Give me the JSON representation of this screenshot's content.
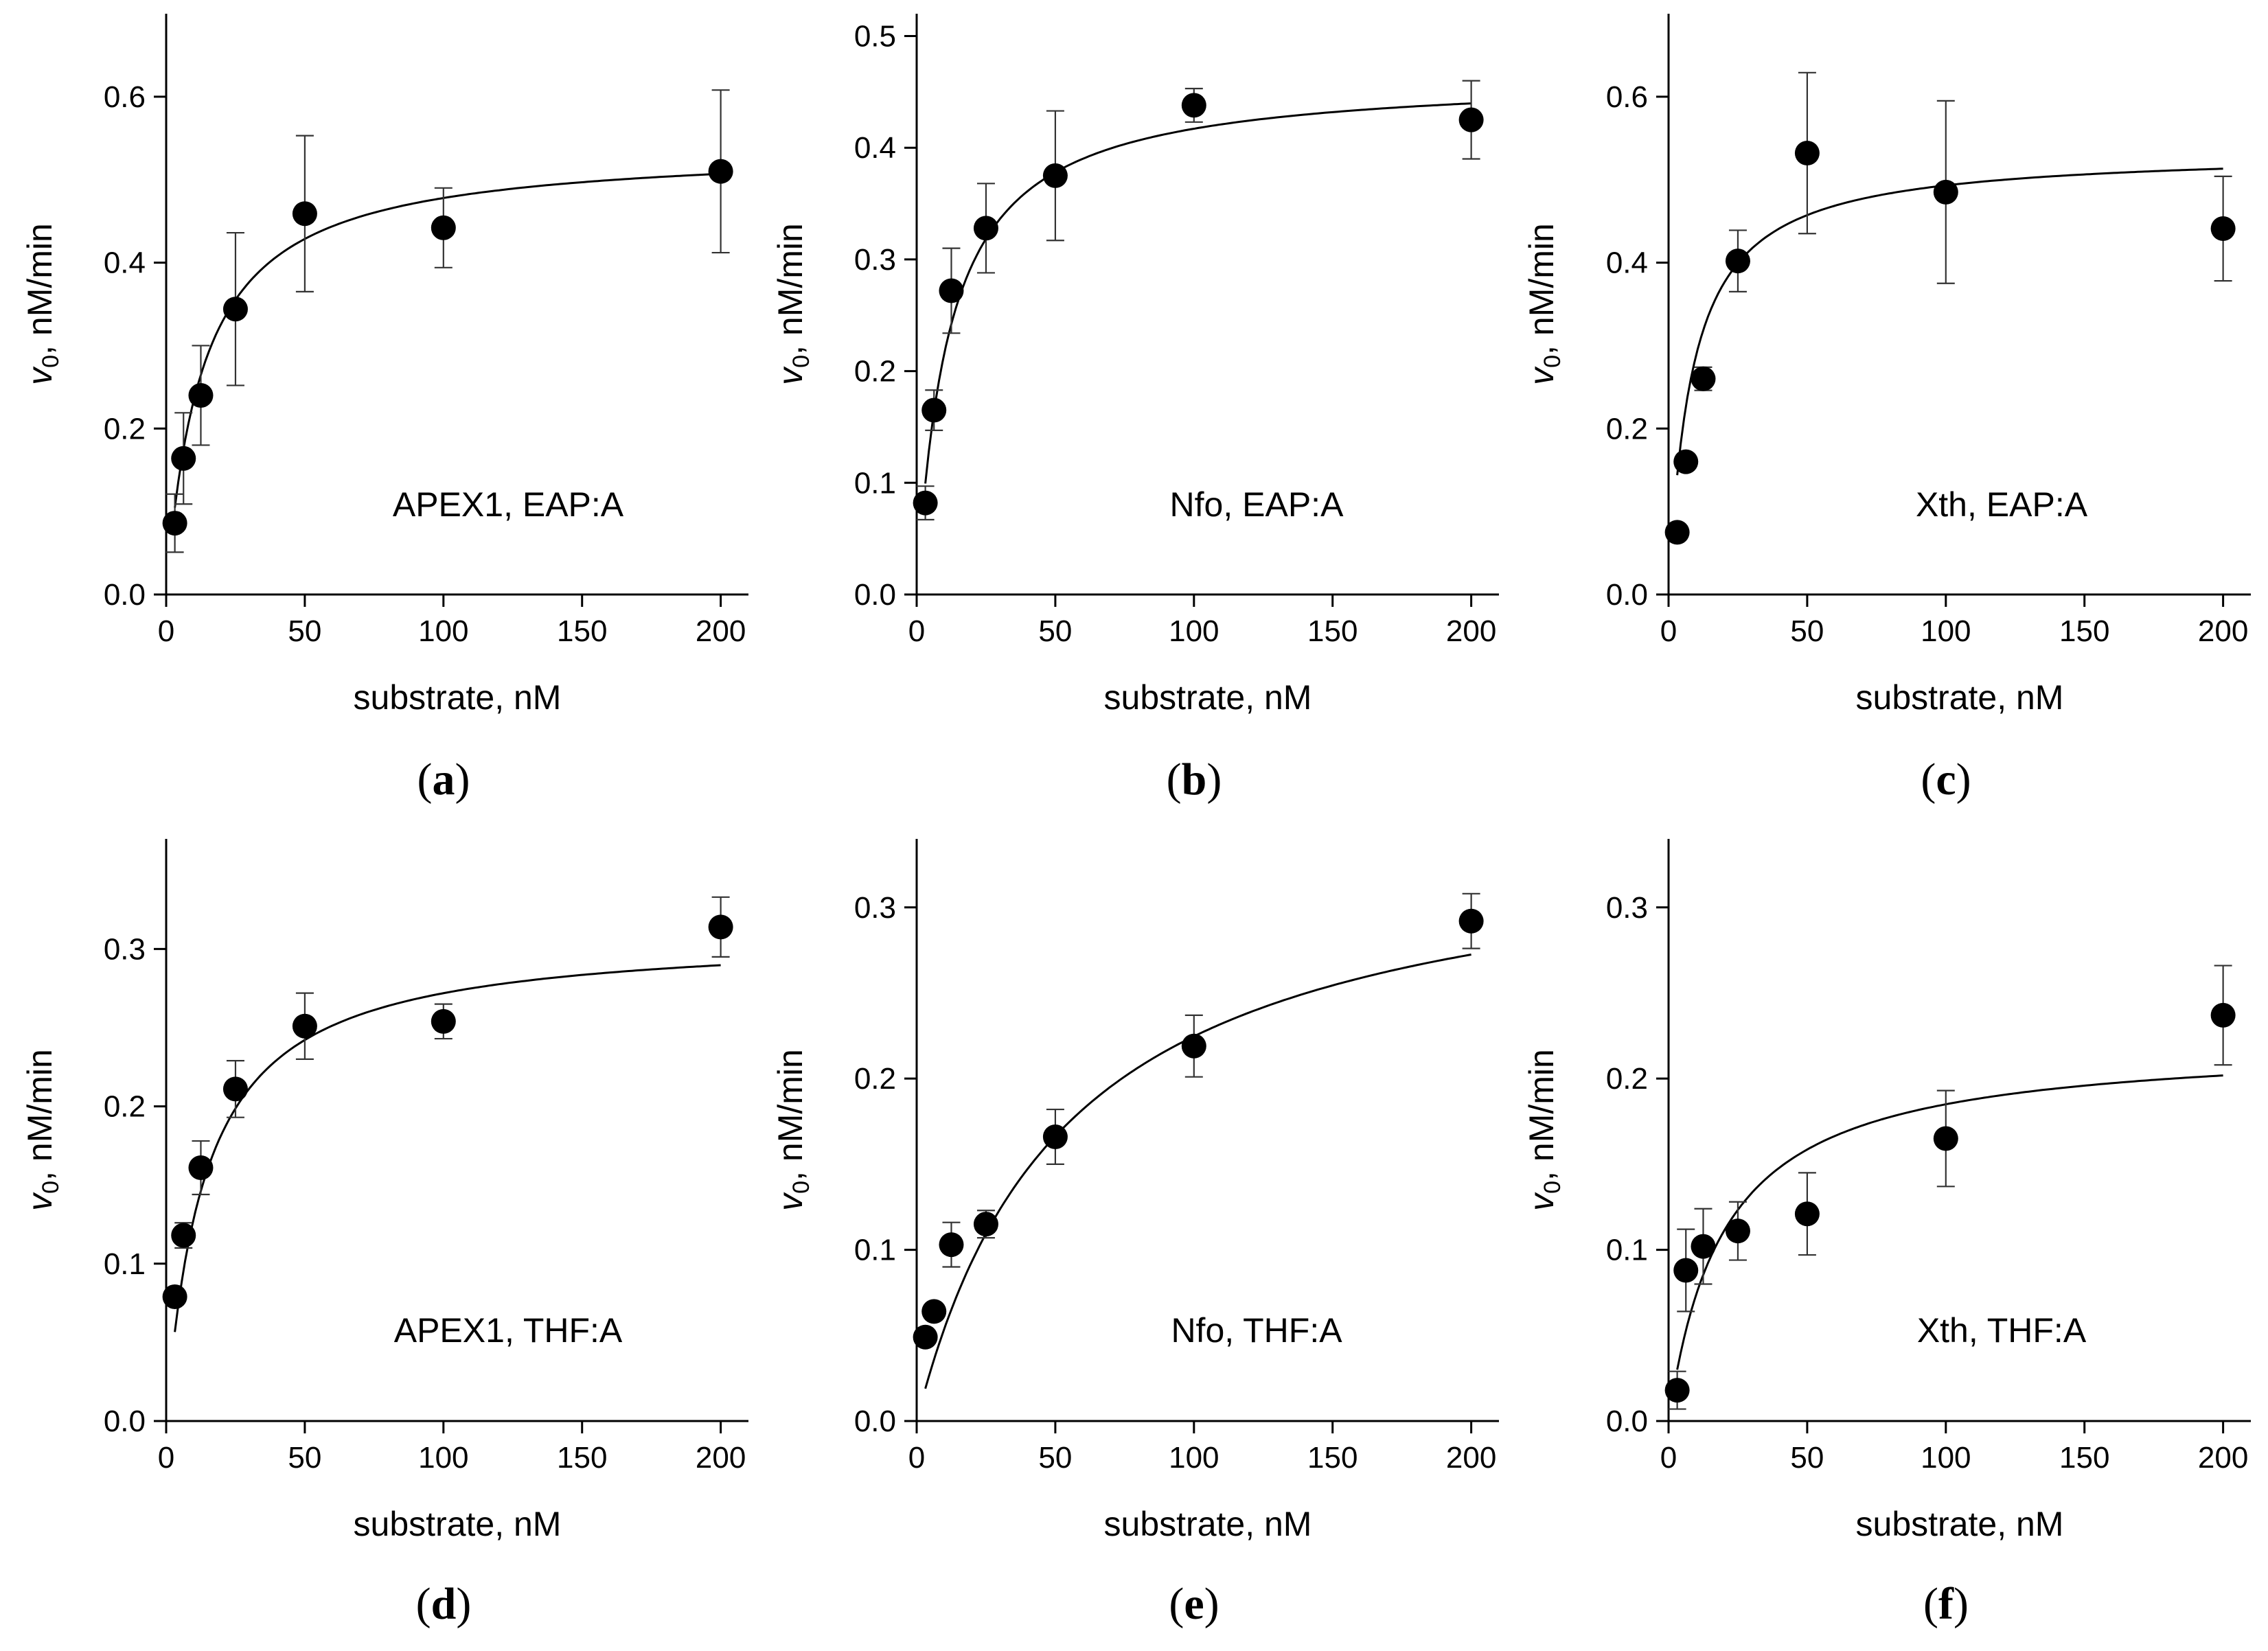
{
  "chart_data": [
    {
      "type": "scatter",
      "panel_label": "(a)",
      "panel_letter": "a",
      "annotation": "APEX1, EAP:A",
      "xlabel": "substrate, nM",
      "ylabel_main": "v",
      "ylabel_sub": "0",
      "ylabel_rest": ", nM/min",
      "xlim": [
        0,
        210
      ],
      "ylim": [
        0,
        0.7
      ],
      "xticks": [
        0,
        50,
        100,
        150,
        200
      ],
      "xtick_labels": [
        "0",
        "50",
        "100",
        "150",
        "200"
      ],
      "yticks": [
        0,
        0.2,
        0.4,
        0.6
      ],
      "ytick_labels": [
        "0.0",
        "0.2",
        "0.4",
        "0.6"
      ],
      "series": [
        {
          "name": "data",
          "x": [
            3.125,
            6.25,
            12.5,
            25,
            50,
            100,
            200
          ],
          "y": [
            0.086,
            0.164,
            0.24,
            0.344,
            0.459,
            0.442,
            0.51
          ],
          "err": [
            0.035,
            0.055,
            0.06,
            0.092,
            0.094,
            0.048,
            0.098
          ]
        }
      ],
      "fit": {
        "model": "michaelis-menten",
        "vmax": 0.54,
        "km": 13.0,
        "x_start": 3.125,
        "x_end": 200
      }
    },
    {
      "type": "scatter",
      "panel_label": "(b)",
      "panel_letter": "b",
      "annotation": "Nfo, EAP:A",
      "xlabel": "substrate, nM",
      "ylabel_main": "v",
      "ylabel_sub": "0",
      "ylabel_rest": ", nM/min",
      "xlim": [
        0,
        210
      ],
      "ylim": [
        0,
        0.52
      ],
      "xticks": [
        0,
        50,
        100,
        150,
        200
      ],
      "xtick_labels": [
        "0",
        "50",
        "100",
        "150",
        "200"
      ],
      "yticks": [
        0,
        0.1,
        0.2,
        0.3,
        0.4,
        0.5
      ],
      "ytick_labels": [
        "0.0",
        "0.1",
        "0.2",
        "0.3",
        "0.4",
        "0.5"
      ],
      "series": [
        {
          "name": "data",
          "x": [
            3.125,
            6.25,
            12.5,
            25,
            50,
            100,
            200
          ],
          "y": [
            0.082,
            0.165,
            0.272,
            0.328,
            0.375,
            0.438,
            0.425
          ],
          "err": [
            0.015,
            0.018,
            0.038,
            0.04,
            0.058,
            0.015,
            0.035
          ]
        }
      ],
      "fit": {
        "model": "michaelis-menten",
        "vmax": 0.465,
        "km": 11.5,
        "x_start": 3.125,
        "x_end": 200
      }
    },
    {
      "type": "scatter",
      "panel_label": "(c)",
      "panel_letter": "c",
      "annotation": "Xth, EAP:A",
      "xlabel": "substrate, nM",
      "ylabel_main": "v",
      "ylabel_sub": "0",
      "ylabel_rest": ", nM/min",
      "xlim": [
        0,
        210
      ],
      "ylim": [
        0,
        0.7
      ],
      "xticks": [
        0,
        50,
        100,
        150,
        200
      ],
      "xtick_labels": [
        "0",
        "50",
        "100",
        "150",
        "200"
      ],
      "yticks": [
        0,
        0.2,
        0.4,
        0.6
      ],
      "ytick_labels": [
        "0.0",
        "0.2",
        "0.4",
        "0.6"
      ],
      "series": [
        {
          "name": "data",
          "x": [
            3.125,
            6.25,
            12.5,
            25,
            50,
            100,
            200
          ],
          "y": [
            0.075,
            0.16,
            0.26,
            0.402,
            0.532,
            0.485,
            0.441
          ],
          "err": [
            0.006,
            0.008,
            0.014,
            0.037,
            0.097,
            0.11,
            0.063
          ]
        }
      ],
      "fit": {
        "model": "michaelis-menten",
        "vmax": 0.535,
        "km": 8.5,
        "x_start": 3.125,
        "x_end": 200
      }
    },
    {
      "type": "scatter",
      "panel_label": "(d)",
      "panel_letter": "d",
      "annotation": "APEX1, THF:A",
      "xlabel": "substrate, nM",
      "ylabel_main": "v",
      "ylabel_sub": "0",
      "ylabel_rest": ", nM/min",
      "xlim": [
        0,
        210
      ],
      "ylim": [
        0,
        0.37
      ],
      "xticks": [
        0,
        50,
        100,
        150,
        200
      ],
      "xtick_labels": [
        "0",
        "50",
        "100",
        "150",
        "200"
      ],
      "yticks": [
        0,
        0.1,
        0.2,
        0.3
      ],
      "ytick_labels": [
        "0.0",
        "0.1",
        "0.2",
        "0.3"
      ],
      "series": [
        {
          "name": "data",
          "x": [
            3.125,
            6.25,
            12.5,
            25,
            50,
            100,
            200
          ],
          "y": [
            0.079,
            0.118,
            0.161,
            0.211,
            0.251,
            0.254,
            0.314
          ],
          "err": [
            0.005,
            0.008,
            0.017,
            0.018,
            0.021,
            0.011,
            0.019
          ]
        }
      ],
      "fit": {
        "model": "michaelis-menten",
        "vmax": 0.31,
        "km": 14.0,
        "x_start": 3.125,
        "x_end": 200
      }
    },
    {
      "type": "scatter",
      "panel_label": "(e)",
      "panel_letter": "e",
      "annotation": "Nfo, THF:A",
      "xlabel": "substrate, nM",
      "ylabel_main": "v",
      "ylabel_sub": "0",
      "ylabel_rest": ", nM/min",
      "xlim": [
        0,
        210
      ],
      "ylim": [
        0,
        0.34
      ],
      "xticks": [
        0,
        50,
        100,
        150,
        200
      ],
      "xtick_labels": [
        "0",
        "50",
        "100",
        "150",
        "200"
      ],
      "yticks": [
        0,
        0.1,
        0.2,
        0.3
      ],
      "ytick_labels": [
        "0.0",
        "0.1",
        "0.2",
        "0.3"
      ],
      "series": [
        {
          "name": "data",
          "x": [
            3.125,
            6.25,
            12.5,
            25,
            50,
            100,
            200
          ],
          "y": [
            0.049,
            0.064,
            0.103,
            0.115,
            0.166,
            0.219,
            0.292
          ],
          "err": [
            0.004,
            0.004,
            0.013,
            0.008,
            0.016,
            0.018,
            0.016
          ]
        }
      ],
      "fit": {
        "model": "michaelis-menten",
        "vmax": 0.346,
        "km": 54.0,
        "x_start": 3.125,
        "x_end": 200
      }
    },
    {
      "type": "scatter",
      "panel_label": "(f)",
      "panel_letter": "f",
      "annotation": "Xth, THF:A",
      "xlabel": "substrate, nM",
      "ylabel_main": "v",
      "ylabel_sub": "0",
      "ylabel_rest": ", nM/min",
      "xlim": [
        0,
        210
      ],
      "ylim": [
        0,
        0.34
      ],
      "xticks": [
        0,
        50,
        100,
        150,
        200
      ],
      "xtick_labels": [
        "0",
        "50",
        "100",
        "150",
        "200"
      ],
      "yticks": [
        0,
        0.1,
        0.2,
        0.3
      ],
      "ytick_labels": [
        "0.0",
        "0.1",
        "0.2",
        "0.3"
      ],
      "series": [
        {
          "name": "data",
          "x": [
            3.125,
            6.25,
            12.5,
            25,
            50,
            100,
            200
          ],
          "y": [
            0.018,
            0.088,
            0.102,
            0.111,
            0.121,
            0.165,
            0.237
          ],
          "err": [
            0.011,
            0.024,
            0.022,
            0.017,
            0.024,
            0.028,
            0.029
          ]
        }
      ],
      "fit": {
        "model": "michaelis-menten",
        "vmax": 0.222,
        "km": 20.0,
        "x_start": 3.125,
        "x_end": 200
      }
    }
  ]
}
